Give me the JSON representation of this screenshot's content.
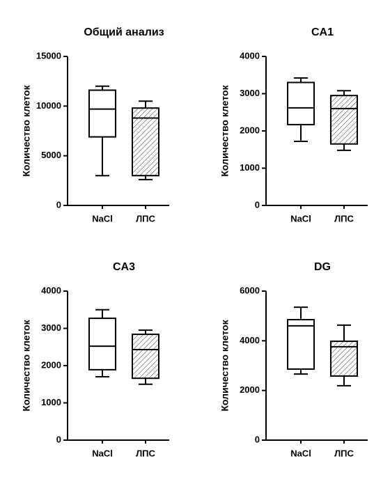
{
  "chart_data": [
    {
      "type": "box",
      "title": "Общий анализ",
      "y_label": "Количество клеток",
      "categories": [
        "NaCl",
        "ЛПС"
      ],
      "boxes": [
        {
          "min": 3000,
          "q1": 6900,
          "median": 9700,
          "q3": 11600,
          "max": 12000,
          "hatch": false
        },
        {
          "min": 2600,
          "q1": 3000,
          "median": 8800,
          "q3": 9800,
          "max": 10500,
          "hatch": true
        }
      ],
      "ylim": [
        0,
        15000
      ],
      "yticks": [
        0,
        5000,
        10000,
        15000
      ],
      "color": "#000000"
    },
    {
      "type": "box",
      "title": "CA1",
      "y_label": "Количество клеток",
      "categories": [
        "NaCl",
        "ЛПС"
      ],
      "boxes": [
        {
          "min": 1720,
          "q1": 2170,
          "median": 2620,
          "q3": 3300,
          "max": 3420,
          "hatch": false
        },
        {
          "min": 1480,
          "q1": 1650,
          "median": 2600,
          "q3": 2950,
          "max": 3080,
          "hatch": true
        }
      ],
      "ylim": [
        0,
        4000
      ],
      "yticks": [
        0,
        1000,
        2000,
        3000,
        4000
      ],
      "color": "#000000"
    },
    {
      "type": "box",
      "title": "CA3",
      "y_label": "Количество клеток",
      "categories": [
        "NaCl",
        "ЛПС"
      ],
      "boxes": [
        {
          "min": 1700,
          "q1": 1890,
          "median": 2520,
          "q3": 3270,
          "max": 3500,
          "hatch": false
        },
        {
          "min": 1500,
          "q1": 1660,
          "median": 2430,
          "q3": 2840,
          "max": 2950,
          "hatch": true
        }
      ],
      "ylim": [
        0,
        4000
      ],
      "yticks": [
        0,
        1000,
        2000,
        3000,
        4000
      ],
      "color": "#000000"
    },
    {
      "type": "box",
      "title": "DG",
      "y_label": "Количество клеток",
      "categories": [
        "NaCl",
        "ЛПС"
      ],
      "boxes": [
        {
          "min": 2660,
          "q1": 2860,
          "median": 4600,
          "q3": 4850,
          "max": 5350,
          "hatch": false
        },
        {
          "min": 2190,
          "q1": 2580,
          "median": 3760,
          "q3": 3980,
          "max": 4630,
          "hatch": true
        }
      ],
      "ylim": [
        0,
        6000
      ],
      "yticks": [
        0,
        2000,
        4000,
        6000
      ],
      "color": "#000000"
    }
  ]
}
